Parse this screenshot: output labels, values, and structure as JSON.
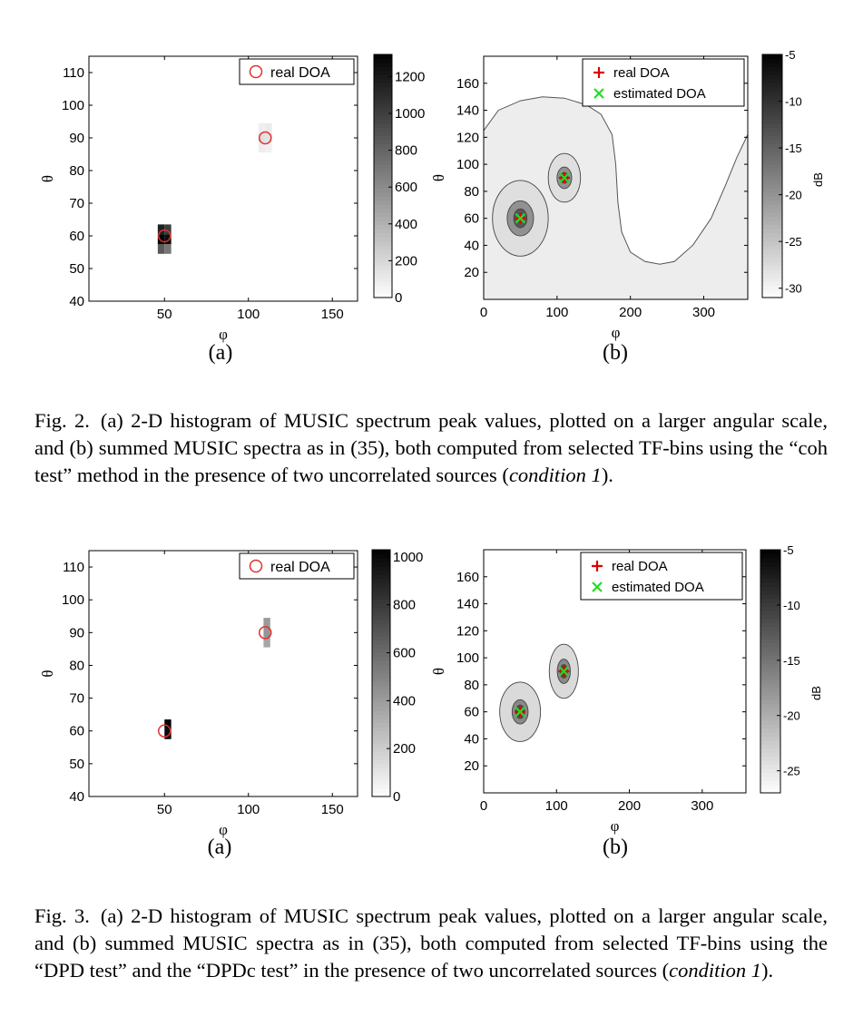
{
  "figures": [
    {
      "label": "Fig. 2.",
      "caption_pre": "(a) 2-D histogram of MUSIC spectrum peak values, plotted on a larger angular scale, and (b) summed MUSIC spectra as in (35), both computed from selected TF-bins using the “coh test” method in the presence of two uncorrelated sources (",
      "caption_italic": "condition 1",
      "caption_post": ")."
    },
    {
      "label": "Fig. 3.",
      "caption_pre": "(a) 2-D histogram of MUSIC spectrum peak values, plotted on a larger angular scale, and (b) summed MUSIC spectra as in (35), both computed from selected TF-bins using the “DPD test” and the “DPDc test” in the presence of two uncorrelated sources (",
      "caption_italic": "condition 1",
      "caption_post": ")."
    }
  ],
  "colors": {
    "real_doa_circle": "#e03030",
    "real_doa_plus": "#e00000",
    "estimated_doa": "#22dd22"
  },
  "chart_data": [
    {
      "id": "fig2a",
      "type": "heatmap",
      "panel_label": "(a)",
      "xlabel": "φ",
      "ylabel": "θ",
      "xlim": [
        5,
        165
      ],
      "ylim": [
        40,
        115
      ],
      "xticks": [
        50,
        100,
        150
      ],
      "yticks": [
        40,
        50,
        60,
        70,
        80,
        90,
        100,
        110
      ],
      "cells": [
        {
          "phi": 48,
          "theta": 62,
          "count": 1150
        },
        {
          "phi": 52,
          "theta": 62,
          "count": 1000
        },
        {
          "phi": 48,
          "theta": 59,
          "count": 1320
        },
        {
          "phi": 52,
          "theta": 59,
          "count": 1250
        },
        {
          "phi": 48,
          "theta": 56,
          "count": 850
        },
        {
          "phi": 52,
          "theta": 56,
          "count": 700
        },
        {
          "phi": 108,
          "theta": 93,
          "count": 70
        },
        {
          "phi": 112,
          "theta": 93,
          "count": 90
        },
        {
          "phi": 108,
          "theta": 90,
          "count": 150
        },
        {
          "phi": 112,
          "theta": 90,
          "count": 130
        },
        {
          "phi": 108,
          "theta": 87,
          "count": 80
        },
        {
          "phi": 112,
          "theta": 87,
          "count": 60
        }
      ],
      "real_doa": [
        {
          "phi": 50,
          "theta": 60
        },
        {
          "phi": 110,
          "theta": 90
        }
      ],
      "legend": [
        "real DOA"
      ],
      "colorbar": {
        "min": 0,
        "max": 1320,
        "ticks": [
          0,
          200,
          400,
          600,
          800,
          1000,
          1200
        ]
      }
    },
    {
      "id": "fig2b",
      "type": "heatmap",
      "panel_label": "(b)",
      "xlabel": "φ",
      "ylabel": "θ",
      "xlim": [
        0,
        360
      ],
      "ylim": [
        0,
        180
      ],
      "xticks": [
        0,
        100,
        200,
        300
      ],
      "yticks": [
        20,
        40,
        60,
        80,
        100,
        120,
        140,
        160
      ],
      "contour_levels_db": [
        -28,
        -20,
        -14
      ],
      "peaks": [
        {
          "phi": 50,
          "theta": 60,
          "radii_db": [
            [
              38,
              28
            ],
            [
              18,
              13
            ],
            [
              9,
              7
            ]
          ]
        },
        {
          "phi": 110,
          "theta": 90,
          "radii_db": [
            [
              22,
              18
            ],
            [
              10,
              8
            ],
            [
              5,
              4
            ]
          ]
        }
      ],
      "boundary": [
        [
          0,
          125
        ],
        [
          20,
          140
        ],
        [
          50,
          147
        ],
        [
          80,
          150
        ],
        [
          110,
          149
        ],
        [
          140,
          144
        ],
        [
          160,
          137
        ],
        [
          175,
          122
        ],
        [
          180,
          100
        ],
        [
          183,
          72
        ],
        [
          188,
          50
        ],
        [
          200,
          35
        ],
        [
          220,
          28
        ],
        [
          240,
          26
        ],
        [
          260,
          28
        ],
        [
          285,
          40
        ],
        [
          310,
          60
        ],
        [
          330,
          85
        ],
        [
          345,
          105
        ],
        [
          360,
          122
        ]
      ],
      "real_doa": [
        {
          "phi": 50,
          "theta": 60
        },
        {
          "phi": 110,
          "theta": 90
        }
      ],
      "estimated_doa": [
        {
          "phi": 50,
          "theta": 60
        },
        {
          "phi": 110,
          "theta": 90
        }
      ],
      "legend": [
        "real DOA",
        "estimated DOA"
      ],
      "colorbar": {
        "min": -31,
        "max": -5,
        "ticks": [
          -5,
          -10,
          -15,
          -20,
          -25,
          -30
        ],
        "label": "dB"
      }
    },
    {
      "id": "fig3a",
      "type": "heatmap",
      "panel_label": "(a)",
      "xlabel": "φ",
      "ylabel": "θ",
      "xlim": [
        5,
        165
      ],
      "ylim": [
        40,
        115
      ],
      "xticks": [
        50,
        100,
        150
      ],
      "yticks": [
        40,
        50,
        60,
        70,
        80,
        90,
        100,
        110
      ],
      "cells": [
        {
          "phi": 52,
          "theta": 62,
          "count": 1010
        },
        {
          "phi": 52,
          "theta": 59,
          "count": 980
        },
        {
          "phi": 111,
          "theta": 93,
          "count": 400
        },
        {
          "phi": 111,
          "theta": 90,
          "count": 420
        },
        {
          "phi": 111,
          "theta": 87,
          "count": 350
        }
      ],
      "real_doa": [
        {
          "phi": 50,
          "theta": 60
        },
        {
          "phi": 110,
          "theta": 90
        }
      ],
      "legend": [
        "real DOA"
      ],
      "colorbar": {
        "min": 0,
        "max": 1030,
        "ticks": [
          0,
          200,
          400,
          600,
          800,
          1000
        ]
      }
    },
    {
      "id": "fig3b",
      "type": "heatmap",
      "panel_label": "(b)",
      "xlabel": "φ",
      "ylabel": "θ",
      "xlim": [
        0,
        360
      ],
      "ylim": [
        0,
        180
      ],
      "xticks": [
        0,
        100,
        200,
        300
      ],
      "yticks": [
        20,
        40,
        60,
        80,
        100,
        120,
        140,
        160
      ],
      "contour_levels_db": [
        -24,
        -17,
        -12
      ],
      "peaks": [
        {
          "phi": 50,
          "theta": 60,
          "radii_db": [
            [
              28,
              22
            ],
            [
              11,
              9
            ],
            [
              6,
              5
            ]
          ]
        },
        {
          "phi": 110,
          "theta": 90,
          "radii_db": [
            [
              20,
              20
            ],
            [
              9,
              9
            ],
            [
              5,
              5
            ]
          ]
        }
      ],
      "real_doa": [
        {
          "phi": 50,
          "theta": 60
        },
        {
          "phi": 110,
          "theta": 90
        }
      ],
      "estimated_doa": [
        {
          "phi": 50,
          "theta": 60
        },
        {
          "phi": 110,
          "theta": 90
        }
      ],
      "legend": [
        "real DOA",
        "estimated DOA"
      ],
      "colorbar": {
        "min": -27,
        "max": -5,
        "ticks": [
          -5,
          -10,
          -15,
          -20,
          -25
        ],
        "label": "dB"
      }
    }
  ]
}
